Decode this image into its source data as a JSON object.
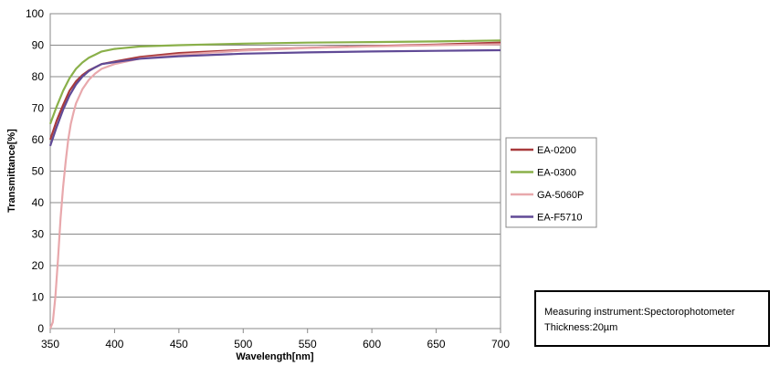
{
  "chart_data": {
    "type": "line",
    "xlabel": "Wavelength[nm]",
    "ylabel": "Transmittance[%]",
    "xlim": [
      350,
      700
    ],
    "ylim": [
      0,
      100
    ],
    "xticks": [
      350,
      400,
      450,
      500,
      550,
      600,
      650,
      700
    ],
    "yticks": [
      0,
      10,
      20,
      30,
      40,
      50,
      60,
      70,
      80,
      90,
      100
    ],
    "grid": "horizontal",
    "legend_position": "right",
    "series": [
      {
        "name": "EA-0200",
        "color": "#a83a3c",
        "points": [
          [
            350,
            60
          ],
          [
            355,
            66
          ],
          [
            360,
            71
          ],
          [
            365,
            75.5
          ],
          [
            370,
            78.5
          ],
          [
            375,
            80.5
          ],
          [
            380,
            82
          ],
          [
            385,
            83
          ],
          [
            390,
            84
          ],
          [
            400,
            84.8
          ],
          [
            420,
            86.3
          ],
          [
            450,
            87.5
          ],
          [
            500,
            88.5
          ],
          [
            550,
            89.2
          ],
          [
            600,
            89.7
          ],
          [
            650,
            90.2
          ],
          [
            700,
            90.8
          ]
        ]
      },
      {
        "name": "EA-0300",
        "color": "#8ab04a",
        "points": [
          [
            350,
            65
          ],
          [
            355,
            70.5
          ],
          [
            360,
            75.5
          ],
          [
            365,
            79.5
          ],
          [
            370,
            82.5
          ],
          [
            375,
            84.5
          ],
          [
            380,
            86
          ],
          [
            385,
            87
          ],
          [
            390,
            88
          ],
          [
            400,
            88.8
          ],
          [
            420,
            89.6
          ],
          [
            450,
            90
          ],
          [
            500,
            90.5
          ],
          [
            550,
            90.8
          ],
          [
            600,
            91
          ],
          [
            650,
            91.2
          ],
          [
            700,
            91.5
          ]
        ]
      },
      {
        "name": "GA-5060P",
        "color": "#e8a8ac",
        "points": [
          [
            350,
            0
          ],
          [
            352,
            2
          ],
          [
            354,
            10
          ],
          [
            356,
            22
          ],
          [
            358,
            35
          ],
          [
            360,
            45
          ],
          [
            362,
            53
          ],
          [
            364,
            60
          ],
          [
            366,
            65
          ],
          [
            368,
            68.5
          ],
          [
            370,
            71.5
          ],
          [
            375,
            76
          ],
          [
            380,
            79
          ],
          [
            385,
            81
          ],
          [
            390,
            82.5
          ],
          [
            400,
            84
          ],
          [
            420,
            85.8
          ],
          [
            450,
            87
          ],
          [
            500,
            88.3
          ],
          [
            550,
            89.1
          ],
          [
            600,
            89.6
          ],
          [
            650,
            90
          ],
          [
            700,
            90.3
          ]
        ]
      },
      {
        "name": "EA-F5710",
        "color": "#604a96",
        "points": [
          [
            350,
            58
          ],
          [
            355,
            64
          ],
          [
            360,
            69.5
          ],
          [
            365,
            74
          ],
          [
            370,
            77.5
          ],
          [
            375,
            80
          ],
          [
            380,
            81.8
          ],
          [
            385,
            83
          ],
          [
            390,
            84
          ],
          [
            400,
            84.6
          ],
          [
            420,
            85.7
          ],
          [
            450,
            86.5
          ],
          [
            500,
            87.3
          ],
          [
            550,
            87.7
          ],
          [
            600,
            88
          ],
          [
            650,
            88.2
          ],
          [
            700,
            88.4
          ]
        ]
      }
    ]
  },
  "note": {
    "line1": "Measuring instrument:Spectorophotometer",
    "line2": "Thickness:20µm"
  }
}
